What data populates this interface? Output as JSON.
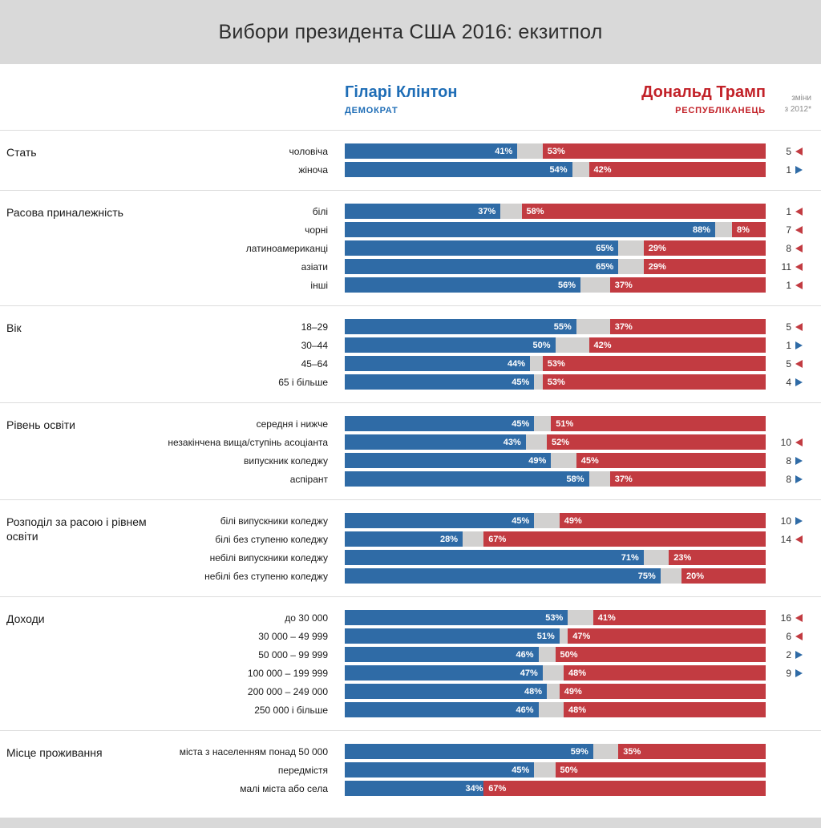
{
  "title": "Вибори президента США 2016: екзитпол",
  "header": {
    "clinton": {
      "name": "Гіларі Клінтон",
      "party": "ДЕМОКРАТ"
    },
    "trump": {
      "name": "Дональд Трамп",
      "party": "РЕСПУБЛІКАНЕЦЬ"
    },
    "change_note_line1": "зміни",
    "change_note_line2": "з 2012*"
  },
  "colors": {
    "clinton_bar": "#2f6ba6",
    "trump_bar": "#c23b41",
    "clinton_text": "#1e6db6",
    "trump_text": "#c22128",
    "bar_gap": "#d2d1d0",
    "band_bg": "#d9d9d9"
  },
  "chart_data": {
    "type": "bar",
    "unit": "%",
    "series_names": [
      "Гіларі Клінтон (Демократ)",
      "Дональд Трамп (Республіканець)"
    ],
    "value_range": [
      0,
      100
    ],
    "change_note": "зміни з 2012*",
    "sections": [
      {
        "category": "Стать",
        "rows": [
          {
            "label": "чоловіча",
            "clinton": 41,
            "trump": 53,
            "change": 5,
            "change_dir": "left"
          },
          {
            "label": "жіноча",
            "clinton": 54,
            "trump": 42,
            "change": 1,
            "change_dir": "right"
          }
        ]
      },
      {
        "category": "Расова приналежність",
        "rows": [
          {
            "label": "білі",
            "clinton": 37,
            "trump": 58,
            "change": 1,
            "change_dir": "left"
          },
          {
            "label": "чорні",
            "clinton": 88,
            "trump": 8,
            "change": 7,
            "change_dir": "left"
          },
          {
            "label": "латиноамериканці",
            "clinton": 65,
            "trump": 29,
            "change": 8,
            "change_dir": "left"
          },
          {
            "label": "азіати",
            "clinton": 65,
            "trump": 29,
            "change": 11,
            "change_dir": "left"
          },
          {
            "label": "інші",
            "clinton": 56,
            "trump": 37,
            "change": 1,
            "change_dir": "left"
          }
        ]
      },
      {
        "category": "Вік",
        "rows": [
          {
            "label": "18–29",
            "clinton": 55,
            "trump": 37,
            "change": 5,
            "change_dir": "left"
          },
          {
            "label": "30–44",
            "clinton": 50,
            "trump": 42,
            "change": 1,
            "change_dir": "right"
          },
          {
            "label": "45–64",
            "clinton": 44,
            "trump": 53,
            "change": 5,
            "change_dir": "left"
          },
          {
            "label": "65 і більше",
            "clinton": 45,
            "trump": 53,
            "change": 4,
            "change_dir": "right"
          }
        ]
      },
      {
        "category": "Рівень освіти",
        "rows": [
          {
            "label": "середня і нижче",
            "clinton": 45,
            "trump": 51,
            "change": null,
            "change_dir": null
          },
          {
            "label": "незакінчена вища/ступінь асоціанта",
            "clinton": 43,
            "trump": 52,
            "change": 10,
            "change_dir": "left"
          },
          {
            "label": "випускник коледжу",
            "clinton": 49,
            "trump": 45,
            "change": 8,
            "change_dir": "right"
          },
          {
            "label": "аспірант",
            "clinton": 58,
            "trump": 37,
            "change": 8,
            "change_dir": "right"
          }
        ]
      },
      {
        "category": "Розподіл за расою і рівнем освіти",
        "rows": [
          {
            "label": "білі випускники коледжу",
            "clinton": 45,
            "trump": 49,
            "change": 10,
            "change_dir": "right"
          },
          {
            "label": "білі без ступеню коледжу",
            "clinton": 28,
            "trump": 67,
            "change": 14,
            "change_dir": "left"
          },
          {
            "label": "небілі випускники коледжу",
            "clinton": 71,
            "trump": 23,
            "change": null,
            "change_dir": null
          },
          {
            "label": "небілі без ступеню коледжу",
            "clinton": 75,
            "trump": 20,
            "change": null,
            "change_dir": null
          }
        ]
      },
      {
        "category": "Доходи",
        "rows": [
          {
            "label": "до 30 000",
            "clinton": 53,
            "trump": 41,
            "change": 16,
            "change_dir": "left"
          },
          {
            "label": "30 000 – 49 999",
            "clinton": 51,
            "trump": 47,
            "change": 6,
            "change_dir": "left"
          },
          {
            "label": "50 000 – 99 999",
            "clinton": 46,
            "trump": 50,
            "change": 2,
            "change_dir": "right"
          },
          {
            "label": "100 000 – 199 999",
            "clinton": 47,
            "trump": 48,
            "change": 9,
            "change_dir": "right"
          },
          {
            "label": "200 000 – 249 000",
            "clinton": 48,
            "trump": 49,
            "change": null,
            "change_dir": null
          },
          {
            "label": "250 000 і більше",
            "clinton": 46,
            "trump": 48,
            "change": null,
            "change_dir": null
          }
        ]
      },
      {
        "category": "Місце проживання",
        "rows": [
          {
            "label": "міста з населенням понад 50 000",
            "clinton": 59,
            "trump": 35,
            "change": null,
            "change_dir": null
          },
          {
            "label": "передмістя",
            "clinton": 45,
            "trump": 50,
            "change": null,
            "change_dir": null
          },
          {
            "label": "малі міста або села",
            "clinton": 34,
            "trump": 67,
            "change": null,
            "change_dir": null
          }
        ]
      }
    ]
  }
}
